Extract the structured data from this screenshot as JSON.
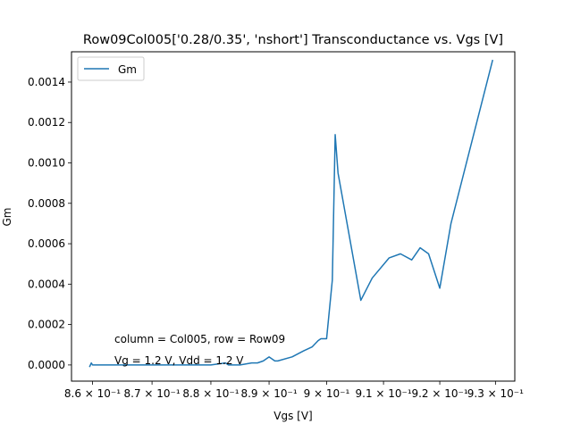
{
  "chart_data": {
    "type": "line",
    "title": "Row09Col005['0.28/0.35', 'nshort'] Transconductance vs. Vgs [V]",
    "xlabel": "Vgs [V]",
    "ylabel": "Gm",
    "x_scale": "log",
    "xlim": [
      0.8565,
      0.9335
    ],
    "ylim": [
      -8e-05,
      0.00155
    ],
    "x_ticks": [
      0.86,
      0.87,
      0.88,
      0.89,
      0.9,
      0.91,
      0.92,
      0.93
    ],
    "x_tick_labels": [
      "8.6 × 10⁻¹",
      "8.7 × 10⁻¹",
      "8.8 × 10⁻¹",
      "8.9 × 10⁻¹",
      "9 × 10⁻¹",
      "9.1 × 10⁻¹",
      "9.2 × 10⁻¹",
      "9.3 × 10⁻¹"
    ],
    "y_ticks": [
      0.0,
      0.0002,
      0.0004,
      0.0006,
      0.0008,
      0.001,
      0.0012,
      0.0014
    ],
    "y_tick_labels": [
      "0.0000",
      "0.0002",
      "0.0004",
      "0.0006",
      "0.0008",
      "0.0010",
      "0.0012",
      "0.0014"
    ],
    "grid": false,
    "legend_position": "upper left",
    "annotations": [
      "column = Col005, row = Row09",
      "Vg = 1.2 V, Vdd = 1.2 V"
    ],
    "series": [
      {
        "name": "Gm",
        "color": "#1f77b4",
        "x": [
          0.8595,
          0.8598,
          0.86,
          0.8605,
          0.865,
          0.87,
          0.875,
          0.88,
          0.8825,
          0.883,
          0.8835,
          0.885,
          0.887,
          0.888,
          0.889,
          0.89,
          0.891,
          0.8915,
          0.894,
          0.896,
          0.8975,
          0.8985,
          0.899,
          0.8995,
          0.9,
          0.901,
          0.9015,
          0.902,
          0.906,
          0.908,
          0.911,
          0.913,
          0.915,
          0.9165,
          0.918,
          0.92,
          0.922,
          0.9295
        ],
        "y": [
          -1e-05,
          1e-05,
          0.0,
          0.0,
          0.0,
          0.0,
          0.0,
          0.0,
          1e-05,
          0.0,
          0.0,
          0.0,
          1e-05,
          1e-05,
          2e-05,
          4e-05,
          2e-05,
          2e-05,
          4e-05,
          7e-05,
          9e-05,
          0.00012,
          0.00013,
          0.00013,
          0.00013,
          0.00042,
          0.00114,
          0.00095,
          0.00032,
          0.00043,
          0.00053,
          0.00055,
          0.00052,
          0.00058,
          0.00055,
          0.00038,
          0.0007,
          0.00151
        ]
      }
    ]
  }
}
